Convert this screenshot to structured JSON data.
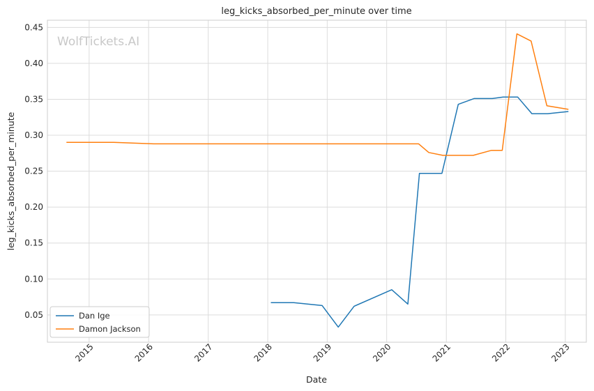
{
  "chart_data": {
    "type": "line",
    "title": "leg_kicks_absorbed_per_minute over time",
    "xlabel": "Date",
    "ylabel": "leg_kicks_absorbed_per_minute",
    "watermark": "WolfTickets.AI",
    "x_ticks": [
      "2015",
      "2016",
      "2017",
      "2018",
      "2019",
      "2020",
      "2021",
      "2022",
      "2023"
    ],
    "y_ticks": [
      "0.05",
      "0.10",
      "0.15",
      "0.20",
      "0.25",
      "0.30",
      "0.35",
      "0.40",
      "0.45"
    ],
    "xlim": [
      "2014-04-20",
      "2023-05-10"
    ],
    "ylim": [
      0.012,
      0.46
    ],
    "grid": true,
    "legend_position": "lower-left",
    "series": [
      {
        "name": "Dan Ige",
        "color": "#1f77b4",
        "points": [
          [
            "2018-01-20",
            0.067
          ],
          [
            "2018-06-10",
            0.067
          ],
          [
            "2018-12-01",
            0.063
          ],
          [
            "2019-03-10",
            0.033
          ],
          [
            "2019-06-15",
            0.062
          ],
          [
            "2020-02-01",
            0.085
          ],
          [
            "2020-05-10",
            0.065
          ],
          [
            "2020-07-20",
            0.247
          ],
          [
            "2020-12-05",
            0.247
          ],
          [
            "2021-03-15",
            0.343
          ],
          [
            "2021-06-20",
            0.351
          ],
          [
            "2021-10-10",
            0.351
          ],
          [
            "2021-12-15",
            0.353
          ],
          [
            "2022-03-15",
            0.353
          ],
          [
            "2022-06-10",
            0.33
          ],
          [
            "2022-09-15",
            0.33
          ],
          [
            "2023-01-20",
            0.333
          ]
        ]
      },
      {
        "name": "Damon Jackson",
        "color": "#ff7f0e",
        "points": [
          [
            "2014-08-15",
            0.29
          ],
          [
            "2015-06-01",
            0.29
          ],
          [
            "2016-02-01",
            0.288
          ],
          [
            "2020-07-15",
            0.288
          ],
          [
            "2020-09-15",
            0.276
          ],
          [
            "2020-12-10",
            0.272
          ],
          [
            "2021-06-15",
            0.272
          ],
          [
            "2021-10-05",
            0.279
          ],
          [
            "2021-12-10",
            0.279
          ],
          [
            "2022-03-10",
            0.441
          ],
          [
            "2022-06-05",
            0.431
          ],
          [
            "2022-09-10",
            0.341
          ],
          [
            "2023-01-20",
            0.336
          ]
        ]
      }
    ]
  }
}
